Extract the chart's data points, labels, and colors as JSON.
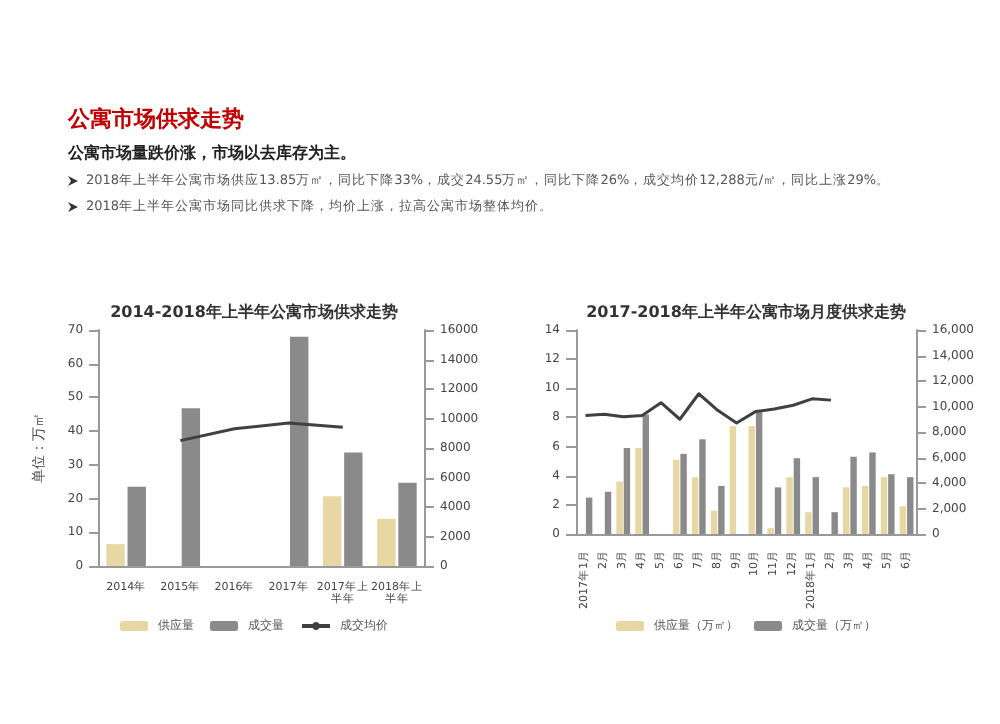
{
  "chart_data": [
    {
      "type": "other",
      "title": "公寓市场供求走势",
      "subtitle": "公寓市场量跌价涨，市场以去库存为主。",
      "annotations": [
        "2018年上半年公寓市场供应13.85万㎡，同比下降33%，成交24.55万㎡，同比下降26%，成交均价12,288元/㎡，同比上涨29%。",
        "2018年上半年公寓市场同比供求下降，均价上涨，拉高公寓市场整体均价。"
      ]
    },
    {
      "type": "bar",
      "title": "2014-2018年上半年公寓市场供求走势",
      "ylabel": "单位：万㎡",
      "categories": [
        "2014年",
        "2015年",
        "2016年",
        "2017年",
        "2017年上半年",
        "2018年上半年"
      ],
      "series": [
        {
          "name": "供应量",
          "color": "#e6d7a3",
          "values": [
            6.5,
            null,
            null,
            null,
            20.7,
            14
          ]
        },
        {
          "name": "成交量",
          "color": "#8a8a8a",
          "values": [
            23.5,
            46.8,
            null,
            68,
            33.7,
            24.7
          ]
        },
        {
          "name": "成交均价",
          "type": "line",
          "axis": "y2",
          "color": "#404040",
          "values": [
            null,
            8500,
            9300,
            9700,
            9400,
            null
          ]
        }
      ],
      "ylim": [
        0,
        70
      ],
      "yticks": [
        0,
        10,
        20,
        30,
        40,
        50,
        60,
        70
      ],
      "y2lim": [
        0,
        16000
      ],
      "y2ticks": [
        0,
        2000,
        4000,
        6000,
        8000,
        10000,
        12000,
        14000,
        16000
      ],
      "legend": "bottom",
      "marker": "none"
    },
    {
      "type": "bar",
      "title": "2017-2018年上半年公寓市场月度供求走势",
      "categories": [
        "2017年1月",
        "2月",
        "3月",
        "4月",
        "5月",
        "6月",
        "7月",
        "8月",
        "9月",
        "10月",
        "11月",
        "12月",
        "2018年1月",
        "2月",
        "3月",
        "4月",
        "5月",
        "6月"
      ],
      "series": [
        {
          "name": "供应量（万㎡）",
          "color": "#e6d7a3",
          "values": [
            0,
            0,
            3.6,
            5.9,
            null,
            5.1,
            3.9,
            1.6,
            7.4,
            7.4,
            0.4,
            3.9,
            1.5,
            0,
            3.2,
            3.3,
            3.9,
            1.9
          ]
        },
        {
          "name": "成交量（万㎡）",
          "color": "#8a8a8a",
          "values": [
            2.5,
            2.9,
            5.9,
            8.2,
            null,
            5.5,
            6.5,
            3.3,
            null,
            8.4,
            3.2,
            5.2,
            3.9,
            1.5,
            5.3,
            5.6,
            4.1,
            3.9
          ]
        },
        {
          "type": "line",
          "axis": "y2",
          "color": "#404040",
          "values": [
            9300,
            9400,
            9200,
            9300,
            10300,
            9000,
            11000,
            9700,
            8700,
            9600,
            9800,
            10100,
            10600,
            10500,
            null,
            null,
            null,
            null
          ]
        }
      ],
      "ylim": [
        0,
        14
      ],
      "yticks": [
        0,
        2,
        4,
        6,
        8,
        10,
        12,
        14
      ],
      "y2lim": [
        0,
        16000
      ],
      "y2ticks": [
        {
          "value": 0,
          "label": "0"
        },
        {
          "value": 2000,
          "label": "2,000"
        },
        {
          "value": 4000,
          "label": "4,000"
        },
        {
          "value": 6000,
          "label": "6,000"
        },
        {
          "value": 8000,
          "label": "8,000"
        },
        {
          "value": 10000,
          "label": "10,000"
        },
        {
          "value": 12000,
          "label": "12,000"
        },
        {
          "value": 14000,
          "label": "14,000"
        },
        {
          "value": 16000,
          "label": "16,000"
        }
      ],
      "legend": "bottom",
      "marker": "none"
    }
  ]
}
